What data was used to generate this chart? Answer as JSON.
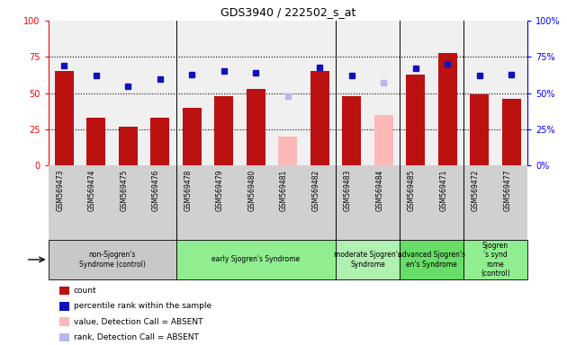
{
  "title": "GDS3940 / 222502_s_at",
  "samples": [
    "GSM569473",
    "GSM569474",
    "GSM569475",
    "GSM569476",
    "GSM569478",
    "GSM569479",
    "GSM569480",
    "GSM569481",
    "GSM569482",
    "GSM569483",
    "GSM569484",
    "GSM569485",
    "GSM569471",
    "GSM569472",
    "GSM569477"
  ],
  "count_values": [
    65,
    33,
    27,
    33,
    40,
    48,
    53,
    null,
    65,
    48,
    null,
    63,
    78,
    49,
    46
  ],
  "count_absent": [
    null,
    null,
    null,
    null,
    null,
    null,
    null,
    20,
    null,
    null,
    35,
    null,
    null,
    null,
    null
  ],
  "rank_values": [
    69,
    62,
    55,
    60,
    63,
    65,
    64,
    null,
    68,
    62,
    null,
    67,
    70,
    62,
    63
  ],
  "rank_absent": [
    null,
    null,
    null,
    null,
    null,
    null,
    null,
    48,
    null,
    null,
    57,
    null,
    null,
    null,
    null
  ],
  "groups": [
    {
      "label": "non-Sjogren's\nSyndrome (control)",
      "start": 0,
      "end": 4,
      "color": "#c8c8c8"
    },
    {
      "label": "early Sjogren's Syndrome",
      "start": 4,
      "end": 9,
      "color": "#90ee90"
    },
    {
      "label": "moderate Sjogren's\nSyndrome",
      "start": 9,
      "end": 11,
      "color": "#b0f0b0"
    },
    {
      "label": "advanced Sjogren's\nen's Syndrome",
      "start": 11,
      "end": 13,
      "color": "#68dd68"
    },
    {
      "label": "Sjogren\n's synd\nrome\n(control)",
      "start": 13,
      "end": 15,
      "color": "#90ee90"
    }
  ],
  "group_boundaries": [
    4,
    9,
    11,
    13
  ],
  "ylim": [
    0,
    100
  ],
  "yticks": [
    0,
    25,
    50,
    75,
    100
  ],
  "bar_color": "#bb1111",
  "absent_bar_color": "#ffb8b8",
  "rank_color": "#1111bb",
  "rank_absent_color": "#b8b8ee",
  "tick_bg_color": "#d0d0d0",
  "plot_bg_color": "#f0f0f0"
}
